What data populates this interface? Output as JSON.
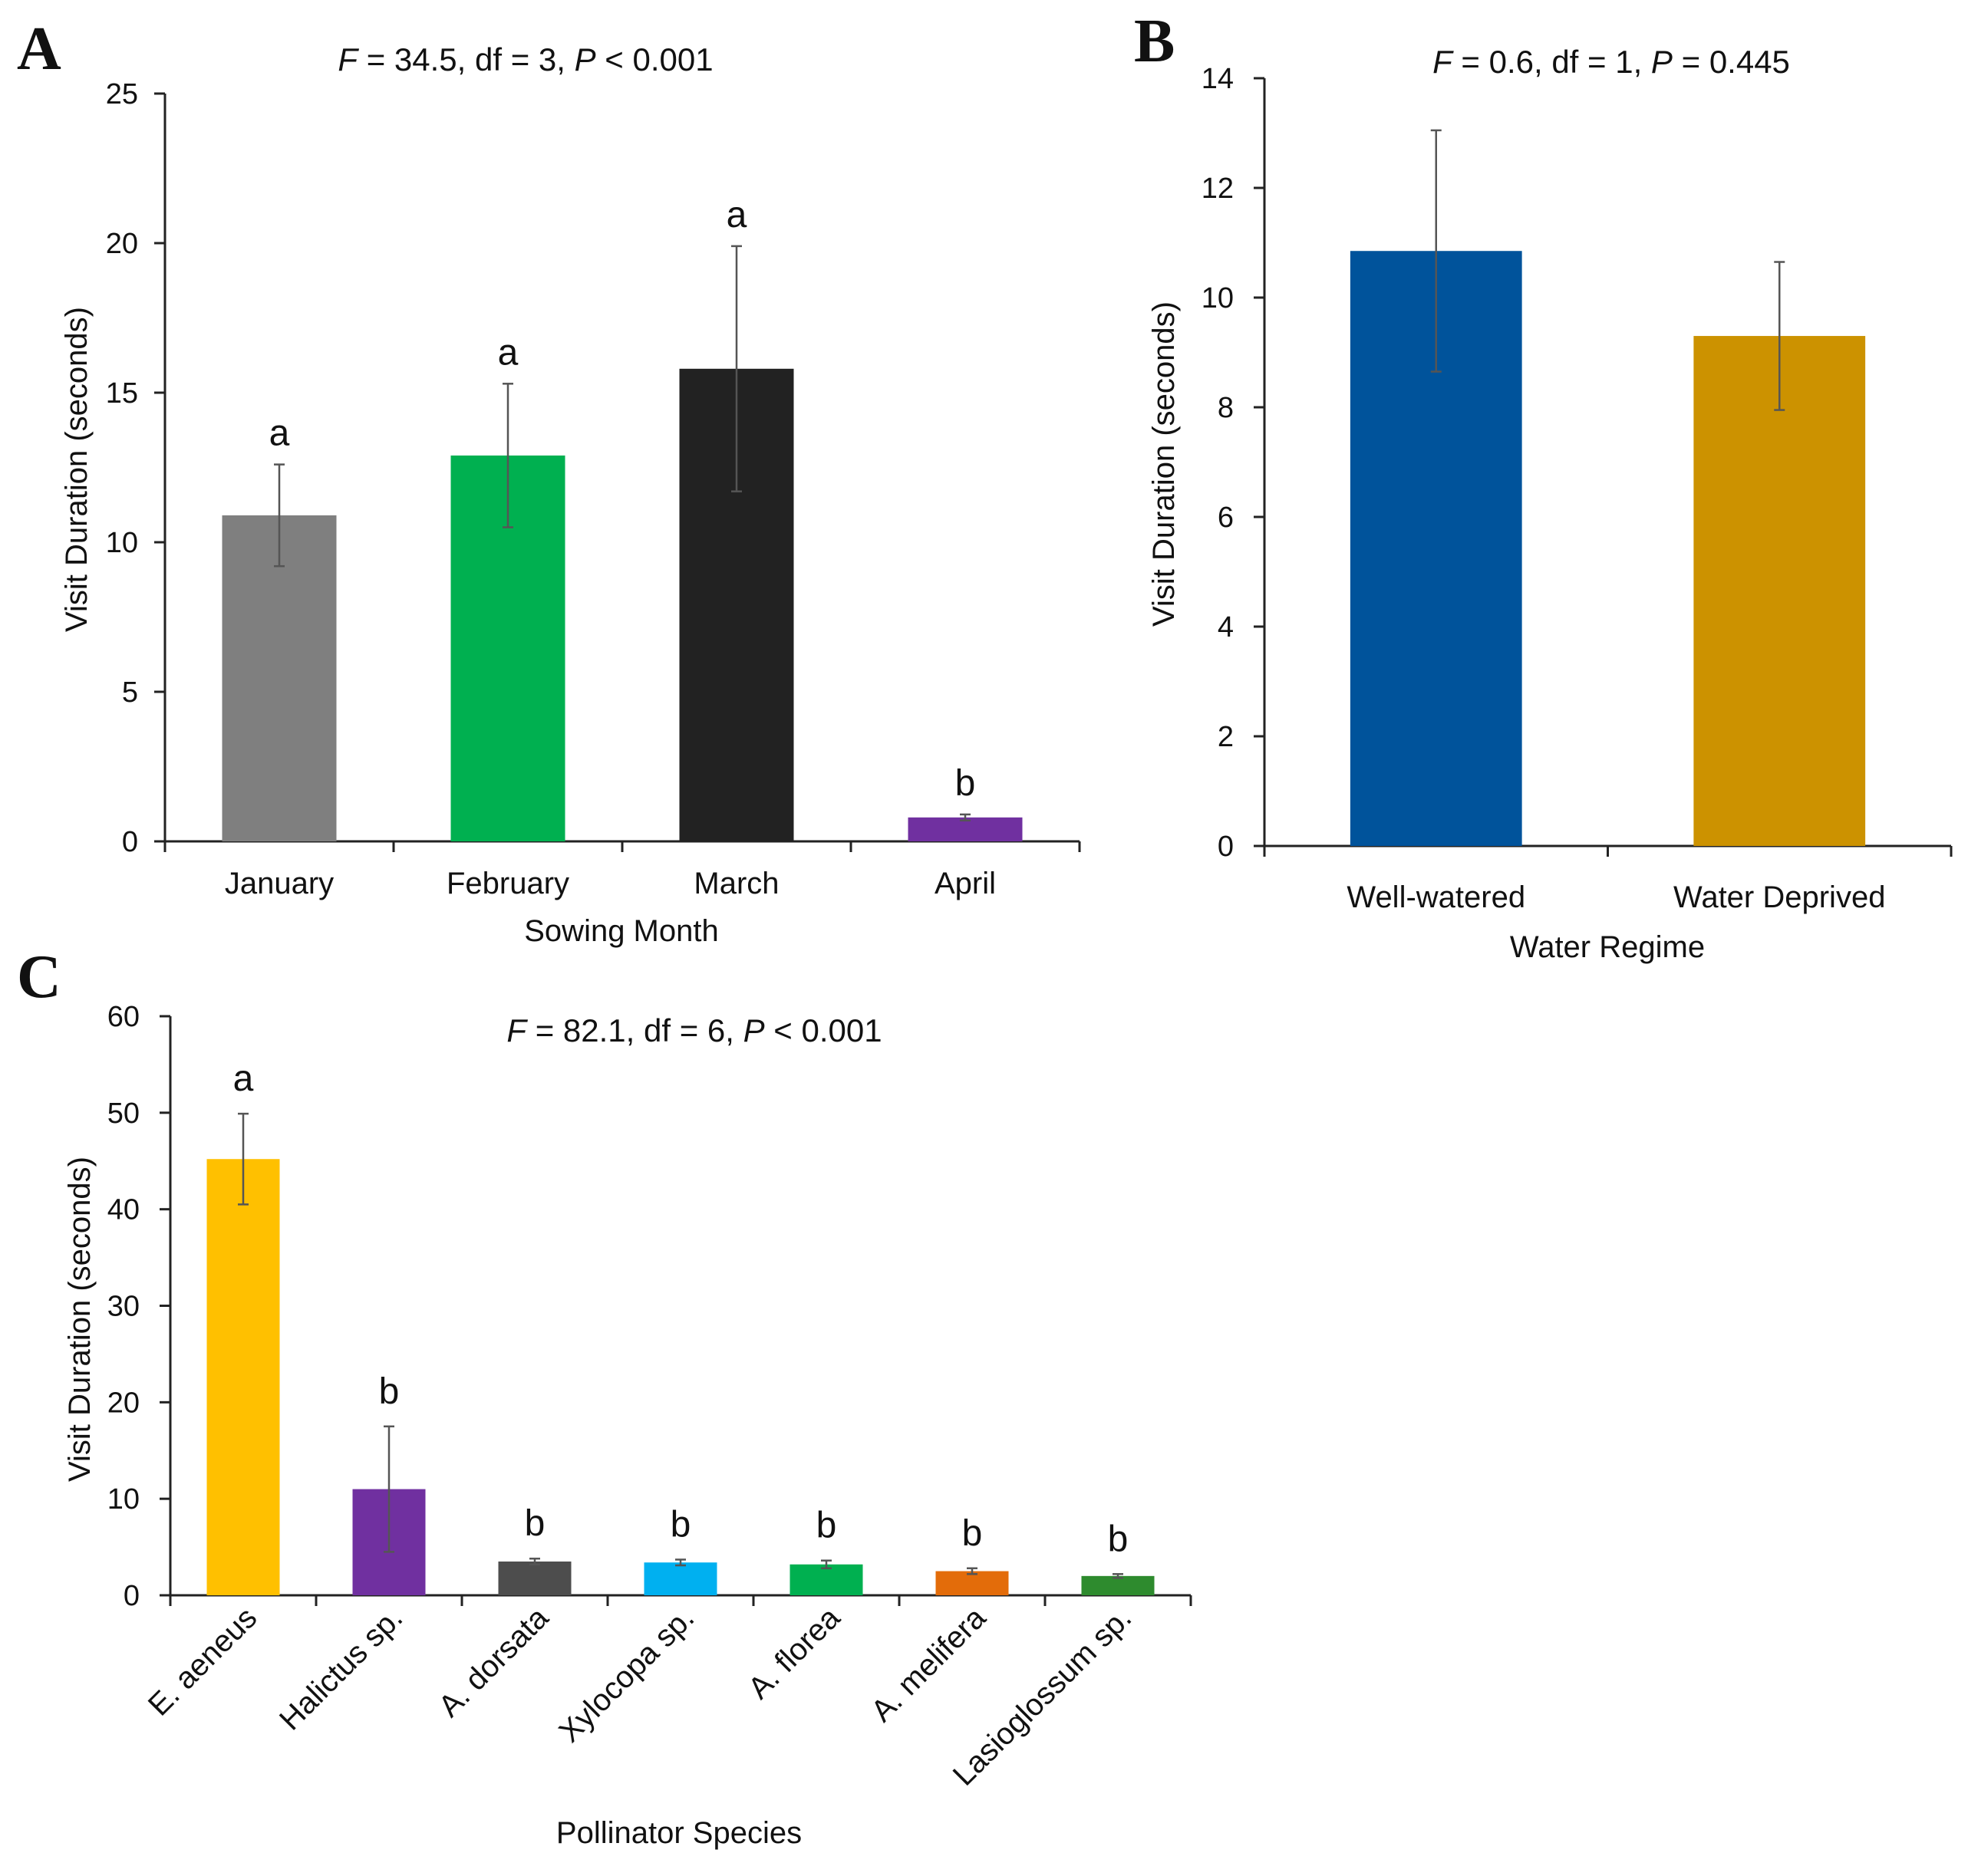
{
  "chart_data": [
    {
      "panel": "A",
      "type": "bar",
      "stat": {
        "F": "34.5",
        "df": "3",
        "P": "0.001",
        "p_relation": "<"
      },
      "categories": [
        "January",
        "February",
        "March",
        "April"
      ],
      "values": [
        10.9,
        12.9,
        15.8,
        0.8
      ],
      "errors": [
        1.7,
        2.4,
        4.1,
        0.1
      ],
      "significance": [
        "a",
        "a",
        "a",
        "b"
      ],
      "colors": [
        "#7f7f7f",
        "#00b050",
        "#222222",
        "#7030a0"
      ],
      "xlabel": "Sowing Month",
      "ylabel": "Visit Duration (seconds)",
      "ylim": [
        0,
        25
      ],
      "yticks": [
        0,
        5,
        10,
        15,
        20,
        25
      ],
      "grid": false
    },
    {
      "panel": "B",
      "type": "bar",
      "stat": {
        "F": "0.6",
        "df": "1",
        "P": "0.445",
        "p_relation": "="
      },
      "categories": [
        "Well-watered",
        "Water Deprived"
      ],
      "values": [
        10.85,
        9.3
      ],
      "errors": [
        2.2,
        1.35
      ],
      "significance": [
        "",
        ""
      ],
      "colors": [
        "#00539b",
        "#cc9200"
      ],
      "xlabel": "Water Regime",
      "ylabel": "Visit Duration (seconds)",
      "ylim": [
        0,
        14
      ],
      "yticks": [
        0,
        2,
        4,
        6,
        8,
        10,
        12,
        14
      ],
      "grid": false
    },
    {
      "panel": "C",
      "type": "bar",
      "stat": {
        "F": "82.1",
        "df": "6",
        "P": "0.001",
        "p_relation": "<"
      },
      "categories": [
        "E. aeneus",
        "Halictus sp.",
        "A. dorsata",
        "Xylocopa sp.",
        "A. florea",
        "A. melifera",
        "Lasioglossum sp."
      ],
      "values": [
        45.2,
        11.0,
        3.5,
        3.4,
        3.2,
        2.5,
        2.0
      ],
      "errors": [
        4.7,
        6.5,
        0.3,
        0.3,
        0.4,
        0.3,
        0.2
      ],
      "significance": [
        "a",
        "b",
        "b",
        "b",
        "b",
        "b",
        "b"
      ],
      "colors": [
        "#ffc000",
        "#7030a0",
        "#4d4d4d",
        "#00b0f0",
        "#00b050",
        "#e36c0a",
        "#2e8b2e"
      ],
      "xlabel": "Pollinator Species",
      "ylabel": "Visit Duration (seconds)",
      "ylim": [
        0,
        60
      ],
      "yticks": [
        0,
        10,
        20,
        30,
        40,
        50,
        60
      ],
      "grid": false
    }
  ]
}
